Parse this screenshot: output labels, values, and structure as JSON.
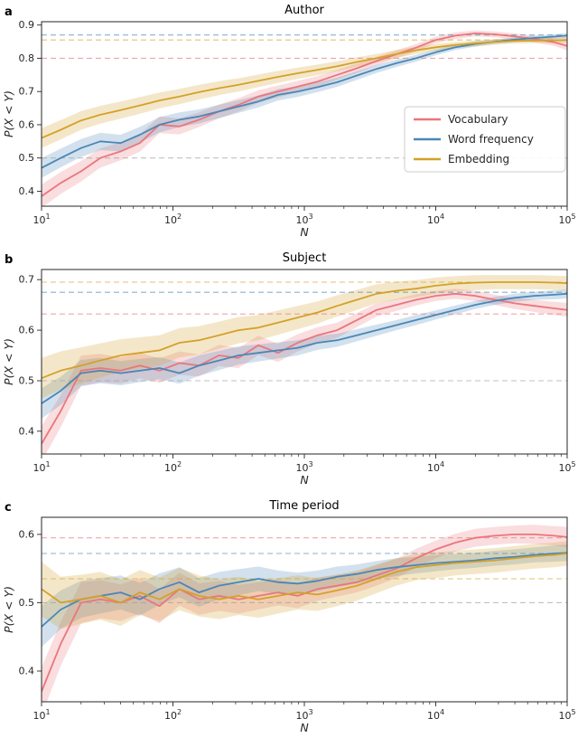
{
  "figure": {
    "background": "#ffffff",
    "text_color": "#262626",
    "spine_color": "#262626",
    "dashed_gray": "#9e9e9e",
    "band_opacity": 0.25,
    "series_colors": {
      "vocabulary": "#ea767c",
      "word_frequency": "#4a87b6",
      "embedding": "#d4a129"
    }
  },
  "legend": {
    "entries": [
      {
        "label": "Vocabulary",
        "series": "vocabulary"
      },
      {
        "label": "Word frequency",
        "series": "word_frequency"
      },
      {
        "label": "Embedding",
        "series": "embedding"
      }
    ]
  },
  "chart_data": [
    {
      "type": "line",
      "letter": "a",
      "title": "Author",
      "xlabel": "N",
      "ylabel": "P(X < Y)",
      "xscale": "log",
      "xlim": [
        10,
        100000
      ],
      "ylim": [
        0.355,
        0.91
      ],
      "yticks": [
        0.4,
        0.5,
        0.6,
        0.7,
        0.8,
        0.9
      ],
      "xticks": [
        10,
        100,
        1000,
        10000,
        100000
      ],
      "legend_box": true,
      "x": [
        10,
        14,
        20,
        28,
        40,
        56,
        79,
        112,
        158,
        224,
        316,
        447,
        631,
        891,
        1259,
        1778,
        2512,
        3548,
        5012,
        7079,
        10000,
        14125,
        19953,
        28184,
        39811,
        56234,
        79433,
        100000
      ],
      "series": [
        {
          "name": "Vocabulary",
          "key": "vocabulary",
          "values": [
            0.385,
            0.425,
            0.46,
            0.5,
            0.52,
            0.545,
            0.6,
            0.595,
            0.615,
            0.64,
            0.66,
            0.685,
            0.7,
            0.715,
            0.73,
            0.75,
            0.77,
            0.792,
            0.812,
            0.832,
            0.855,
            0.868,
            0.875,
            0.872,
            0.866,
            0.858,
            0.848,
            0.837
          ],
          "err": [
            0.035,
            0.033,
            0.031,
            0.029,
            0.027,
            0.026,
            0.025,
            0.024,
            0.022,
            0.021,
            0.02,
            0.019,
            0.018,
            0.017,
            0.016,
            0.015,
            0.014,
            0.013,
            0.012,
            0.011,
            0.01,
            0.01,
            0.009,
            0.009,
            0.009,
            0.01,
            0.011,
            0.013
          ]
        },
        {
          "name": "Word frequency",
          "key": "word_frequency",
          "values": [
            0.47,
            0.5,
            0.53,
            0.55,
            0.545,
            0.57,
            0.6,
            0.615,
            0.625,
            0.64,
            0.655,
            0.67,
            0.69,
            0.7,
            0.713,
            0.728,
            0.748,
            0.768,
            0.785,
            0.8,
            0.818,
            0.833,
            0.843,
            0.85,
            0.856,
            0.861,
            0.865,
            0.868
          ],
          "err": [
            0.03,
            0.028,
            0.027,
            0.026,
            0.025,
            0.024,
            0.023,
            0.022,
            0.021,
            0.02,
            0.019,
            0.018,
            0.017,
            0.016,
            0.015,
            0.014,
            0.013,
            0.012,
            0.011,
            0.01,
            0.009,
            0.008,
            0.008,
            0.007,
            0.007,
            0.007,
            0.007,
            0.008
          ]
        },
        {
          "name": "Embedding",
          "key": "embedding",
          "values": [
            0.56,
            0.585,
            0.613,
            0.63,
            0.644,
            0.658,
            0.673,
            0.685,
            0.698,
            0.71,
            0.72,
            0.732,
            0.744,
            0.755,
            0.765,
            0.776,
            0.789,
            0.8,
            0.813,
            0.824,
            0.833,
            0.84,
            0.845,
            0.849,
            0.852,
            0.853,
            0.854,
            0.855
          ],
          "err": [
            0.03,
            0.029,
            0.028,
            0.027,
            0.026,
            0.025,
            0.024,
            0.023,
            0.022,
            0.021,
            0.02,
            0.019,
            0.018,
            0.017,
            0.016,
            0.015,
            0.014,
            0.013,
            0.012,
            0.011,
            0.01,
            0.009,
            0.009,
            0.008,
            0.008,
            0.008,
            0.008,
            0.008
          ]
        }
      ],
      "dashed_lines": [
        {
          "y": 0.5,
          "color": "gray"
        },
        {
          "y": 0.8,
          "color": "vocabulary"
        },
        {
          "y": 0.855,
          "color": "embedding"
        },
        {
          "y": 0.87,
          "color": "word_frequency"
        }
      ]
    },
    {
      "type": "line",
      "letter": "b",
      "title": "Subject",
      "xlabel": "N",
      "ylabel": "P(X < Y)",
      "xscale": "log",
      "xlim": [
        10,
        100000
      ],
      "ylim": [
        0.355,
        0.72
      ],
      "yticks": [
        0.4,
        0.5,
        0.6,
        0.7
      ],
      "xticks": [
        10,
        100,
        1000,
        10000,
        100000
      ],
      "legend_box": false,
      "x": [
        10,
        14,
        20,
        28,
        40,
        56,
        79,
        112,
        158,
        224,
        316,
        447,
        631,
        891,
        1259,
        1778,
        2512,
        3548,
        5012,
        7079,
        10000,
        14125,
        19953,
        28184,
        39811,
        56234,
        79433,
        100000
      ],
      "series": [
        {
          "name": "Vocabulary",
          "key": "vocabulary",
          "values": [
            0.375,
            0.44,
            0.52,
            0.525,
            0.52,
            0.53,
            0.52,
            0.535,
            0.53,
            0.55,
            0.545,
            0.57,
            0.555,
            0.575,
            0.59,
            0.6,
            0.62,
            0.64,
            0.65,
            0.66,
            0.668,
            0.672,
            0.668,
            0.66,
            0.653,
            0.648,
            0.643,
            0.64
          ],
          "err": [
            0.035,
            0.032,
            0.03,
            0.028,
            0.026,
            0.025,
            0.024,
            0.023,
            0.022,
            0.021,
            0.02,
            0.019,
            0.018,
            0.017,
            0.016,
            0.015,
            0.014,
            0.013,
            0.012,
            0.011,
            0.01,
            0.01,
            0.01,
            0.01,
            0.011,
            0.012,
            0.013,
            0.014
          ]
        },
        {
          "name": "Word frequency",
          "key": "word_frequency",
          "values": [
            0.455,
            0.48,
            0.515,
            0.52,
            0.515,
            0.52,
            0.525,
            0.515,
            0.53,
            0.54,
            0.55,
            0.555,
            0.56,
            0.565,
            0.575,
            0.58,
            0.59,
            0.6,
            0.61,
            0.62,
            0.63,
            0.64,
            0.65,
            0.658,
            0.664,
            0.668,
            0.67,
            0.672
          ],
          "err": [
            0.03,
            0.028,
            0.026,
            0.025,
            0.024,
            0.023,
            0.022,
            0.021,
            0.02,
            0.019,
            0.018,
            0.017,
            0.016,
            0.015,
            0.014,
            0.013,
            0.012,
            0.011,
            0.01,
            0.01,
            0.009,
            0.009,
            0.008,
            0.008,
            0.008,
            0.008,
            0.009,
            0.009
          ]
        },
        {
          "name": "Embedding",
          "key": "embedding",
          "values": [
            0.505,
            0.52,
            0.53,
            0.54,
            0.55,
            0.555,
            0.56,
            0.575,
            0.58,
            0.59,
            0.6,
            0.605,
            0.615,
            0.625,
            0.635,
            0.648,
            0.66,
            0.672,
            0.678,
            0.682,
            0.688,
            0.692,
            0.694,
            0.695,
            0.695,
            0.695,
            0.694,
            0.693
          ],
          "err": [
            0.04,
            0.038,
            0.036,
            0.034,
            0.032,
            0.031,
            0.03,
            0.029,
            0.028,
            0.027,
            0.026,
            0.025,
            0.024,
            0.023,
            0.022,
            0.021,
            0.02,
            0.019,
            0.018,
            0.017,
            0.016,
            0.015,
            0.015,
            0.014,
            0.014,
            0.014,
            0.014,
            0.014
          ]
        }
      ],
      "dashed_lines": [
        {
          "y": 0.5,
          "color": "gray"
        },
        {
          "y": 0.632,
          "color": "vocabulary"
        },
        {
          "y": 0.675,
          "color": "word_frequency"
        },
        {
          "y": 0.695,
          "color": "embedding"
        }
      ]
    },
    {
      "type": "line",
      "letter": "c",
      "title": "Time period",
      "xlabel": "N",
      "ylabel": "P(X < Y)",
      "xscale": "log",
      "xlim": [
        10,
        100000
      ],
      "ylim": [
        0.355,
        0.625
      ],
      "yticks": [
        0.4,
        0.5,
        0.6
      ],
      "xticks": [
        10,
        100,
        1000,
        10000,
        100000
      ],
      "legend_box": false,
      "x": [
        10,
        14,
        20,
        28,
        40,
        56,
        79,
        112,
        158,
        224,
        316,
        447,
        631,
        891,
        1259,
        1778,
        2512,
        3548,
        5012,
        7079,
        10000,
        14125,
        19953,
        28184,
        39811,
        56234,
        79433,
        100000
      ],
      "series": [
        {
          "name": "Vocabulary",
          "key": "vocabulary",
          "values": [
            0.37,
            0.44,
            0.5,
            0.505,
            0.5,
            0.51,
            0.495,
            0.52,
            0.505,
            0.51,
            0.505,
            0.51,
            0.515,
            0.51,
            0.52,
            0.525,
            0.53,
            0.54,
            0.55,
            0.565,
            0.578,
            0.588,
            0.595,
            0.598,
            0.6,
            0.6,
            0.598,
            0.596
          ],
          "err": [
            0.035,
            0.032,
            0.03,
            0.028,
            0.027,
            0.026,
            0.025,
            0.024,
            0.023,
            0.022,
            0.021,
            0.02,
            0.019,
            0.018,
            0.017,
            0.016,
            0.015,
            0.015,
            0.014,
            0.014,
            0.013,
            0.013,
            0.013,
            0.013,
            0.013,
            0.014,
            0.014,
            0.015
          ]
        },
        {
          "name": "Word frequency",
          "key": "word_frequency",
          "values": [
            0.465,
            0.49,
            0.505,
            0.51,
            0.515,
            0.505,
            0.52,
            0.53,
            0.515,
            0.525,
            0.53,
            0.535,
            0.53,
            0.528,
            0.532,
            0.538,
            0.542,
            0.548,
            0.552,
            0.555,
            0.558,
            0.56,
            0.562,
            0.565,
            0.567,
            0.57,
            0.572,
            0.573
          ],
          "err": [
            0.03,
            0.028,
            0.027,
            0.026,
            0.025,
            0.024,
            0.023,
            0.022,
            0.021,
            0.02,
            0.019,
            0.018,
            0.017,
            0.016,
            0.015,
            0.015,
            0.014,
            0.013,
            0.013,
            0.012,
            0.012,
            0.011,
            0.011,
            0.011,
            0.011,
            0.011,
            0.012,
            0.012
          ]
        },
        {
          "name": "Embedding",
          "key": "embedding",
          "values": [
            0.52,
            0.5,
            0.505,
            0.51,
            0.5,
            0.515,
            0.505,
            0.52,
            0.51,
            0.505,
            0.51,
            0.505,
            0.51,
            0.515,
            0.512,
            0.518,
            0.525,
            0.535,
            0.545,
            0.552,
            0.555,
            0.558,
            0.56,
            0.562,
            0.565,
            0.568,
            0.57,
            0.572
          ],
          "err": [
            0.04,
            0.038,
            0.036,
            0.035,
            0.034,
            0.033,
            0.032,
            0.031,
            0.03,
            0.029,
            0.028,
            0.027,
            0.026,
            0.025,
            0.024,
            0.023,
            0.022,
            0.021,
            0.02,
            0.019,
            0.019,
            0.018,
            0.018,
            0.018,
            0.018,
            0.018,
            0.018,
            0.018
          ]
        }
      ],
      "dashed_lines": [
        {
          "y": 0.5,
          "color": "gray"
        },
        {
          "y": 0.535,
          "color": "embedding"
        },
        {
          "y": 0.572,
          "color": "word_frequency"
        },
        {
          "y": 0.595,
          "color": "vocabulary"
        }
      ]
    }
  ]
}
